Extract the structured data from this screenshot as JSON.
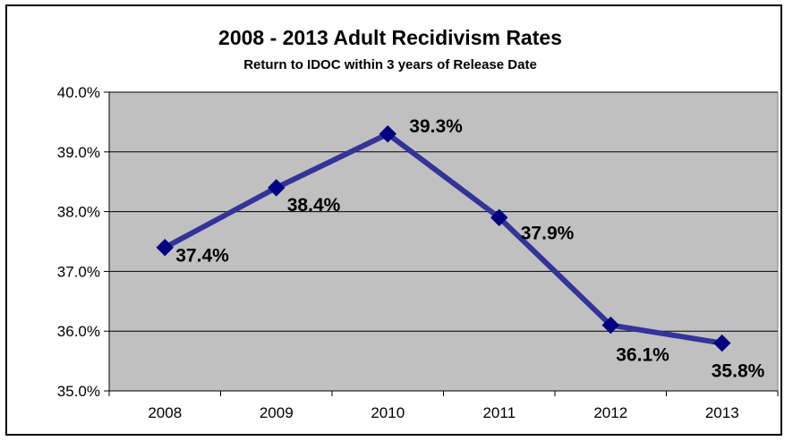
{
  "chart_data": {
    "type": "line",
    "title": "2008 - 2013 Adult Recidivism Rates",
    "subtitle": "Return to IDOC within 3 years of Release Date",
    "xlabel": "",
    "ylabel": "",
    "categories": [
      "2008",
      "2009",
      "2010",
      "2011",
      "2012",
      "2013"
    ],
    "series": [
      {
        "values": [
          37.4,
          38.4,
          39.3,
          37.9,
          36.1,
          35.8
        ],
        "labels": [
          "37.4%",
          "38.4%",
          "39.3%",
          "37.9%",
          "36.1%",
          "35.8%"
        ],
        "color": "#333399",
        "marker_color": "#000080"
      }
    ],
    "ylim": [
      35.0,
      40.0
    ],
    "yticks": [
      35.0,
      36.0,
      37.0,
      38.0,
      39.0,
      40.0
    ],
    "ytick_labels": [
      "35.0%",
      "36.0%",
      "37.0%",
      "38.0%",
      "39.0%",
      "40.0%"
    ],
    "grid": true,
    "legend": "none",
    "plot_background": "#c0c0c0"
  }
}
